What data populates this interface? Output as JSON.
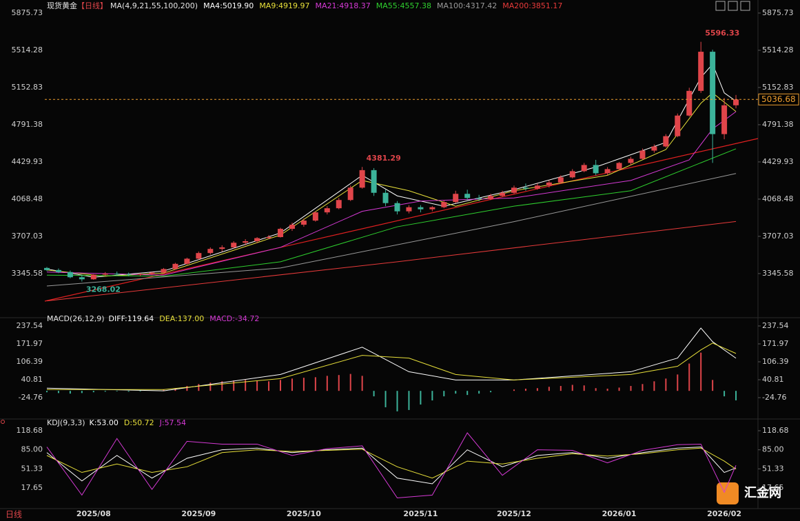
{
  "chart_data": [
    {
      "type": "candlestick",
      "title": "现货黄金",
      "period": "【日线】",
      "ma_label": "MA(4,9,21,55,100,200)",
      "up_color": "#e0454a",
      "down_color": "#3cb39a",
      "ylim": [
        2937,
        5969
      ],
      "yticks": [
        5875.73,
        5514.28,
        5152.83,
        4791.38,
        4429.93,
        4068.48,
        3707.03,
        3345.58
      ],
      "candles": [
        [
          3400,
          3410,
          3370,
          3380
        ],
        [
          3380,
          3395,
          3350,
          3360
        ],
        [
          3360,
          3375,
          3300,
          3310
        ],
        [
          3310,
          3330,
          3268.02,
          3290
        ],
        [
          3290,
          3340,
          3285,
          3335
        ],
        [
          3335,
          3360,
          3320,
          3345
        ],
        [
          3345,
          3365,
          3330,
          3340
        ],
        [
          3340,
          3355,
          3320,
          3335
        ],
        [
          3335,
          3350,
          3320,
          3340
        ],
        [
          3340,
          3360,
          3330,
          3355
        ],
        [
          3355,
          3400,
          3350,
          3390
        ],
        [
          3390,
          3450,
          3385,
          3440
        ],
        [
          3440,
          3500,
          3430,
          3490
        ],
        [
          3490,
          3560,
          3480,
          3545
        ],
        [
          3545,
          3600,
          3530,
          3585
        ],
        [
          3585,
          3620,
          3560,
          3600
        ],
        [
          3600,
          3660,
          3590,
          3645
        ],
        [
          3645,
          3680,
          3620,
          3660
        ],
        [
          3660,
          3700,
          3640,
          3690
        ],
        [
          3690,
          3720,
          3680,
          3700
        ],
        [
          3700,
          3790,
          3695,
          3780
        ],
        [
          3780,
          3840,
          3760,
          3820
        ],
        [
          3820,
          3880,
          3800,
          3860
        ],
        [
          3860,
          3950,
          3850,
          3940
        ],
        [
          3940,
          4000,
          3920,
          3980
        ],
        [
          3980,
          4080,
          3970,
          4060
        ],
        [
          4060,
          4200,
          4050,
          4180
        ],
        [
          4180,
          4381.29,
          4170,
          4350
        ],
        [
          4350,
          4370,
          4100,
          4130
        ],
        [
          4130,
          4160,
          4000,
          4030
        ],
        [
          4030,
          4050,
          3920,
          3950
        ],
        [
          3950,
          4010,
          3930,
          3990
        ],
        [
          3990,
          4010,
          3940,
          3970
        ],
        [
          3970,
          4000,
          3950,
          3990
        ],
        [
          3990,
          4060,
          3980,
          4040
        ],
        [
          4040,
          4150,
          4030,
          4120
        ],
        [
          4120,
          4160,
          4060,
          4080
        ],
        [
          4080,
          4110,
          4050,
          4070
        ],
        [
          4070,
          4120,
          4060,
          4100
        ],
        [
          4100,
          4150,
          4090,
          4130
        ],
        [
          4130,
          4200,
          4120,
          4180
        ],
        [
          4180,
          4220,
          4150,
          4170
        ],
        [
          4170,
          4220,
          4160,
          4200
        ],
        [
          4200,
          4250,
          4180,
          4230
        ],
        [
          4230,
          4300,
          4220,
          4280
        ],
        [
          4280,
          4360,
          4270,
          4340
        ],
        [
          4340,
          4420,
          4330,
          4400
        ],
        [
          4400,
          4450,
          4300,
          4320
        ],
        [
          4320,
          4380,
          4300,
          4360
        ],
        [
          4360,
          4430,
          4350,
          4420
        ],
        [
          4420,
          4480,
          4400,
          4460
        ],
        [
          4460,
          4560,
          4450,
          4540
        ],
        [
          4540,
          4600,
          4520,
          4580
        ],
        [
          4580,
          4700,
          4570,
          4680
        ],
        [
          4680,
          4900,
          4670,
          4880
        ],
        [
          4880,
          5150,
          4870,
          5120
        ],
        [
          5120,
          5596.33,
          5100,
          5500
        ],
        [
          5500,
          5520,
          4420,
          4700
        ],
        [
          4700,
          5050,
          4650,
          4980
        ],
        [
          4980,
          5080,
          4950,
          5036.68
        ]
      ],
      "series": [
        {
          "name": "MA4:",
          "color": "#ffffff",
          "value_label": "5019.90",
          "x": [
            0,
            4,
            10,
            20,
            27,
            30,
            34,
            40,
            47,
            53,
            56,
            57,
            58,
            59
          ],
          "values": [
            3390,
            3310,
            3370,
            3740,
            4300,
            4100,
            4000,
            4160,
            4380,
            4620,
            5250,
            5380,
            5100,
            5019.9
          ]
        },
        {
          "name": "MA9:",
          "color": "#e8e03a",
          "x": [
            0,
            5,
            10,
            20,
            27,
            31,
            35,
            40,
            48,
            53,
            56,
            57,
            59
          ],
          "values": [
            3380,
            3320,
            3350,
            3720,
            4250,
            4150,
            4000,
            4150,
            4300,
            4550,
            5000,
            5100,
            4919.97
          ]
        },
        {
          "name": "MA21:",
          "color": "#d63ad6",
          "x": [
            0,
            10,
            20,
            27,
            32,
            40,
            50,
            55,
            57,
            59
          ],
          "values": [
            3360,
            3330,
            3600,
            3950,
            4050,
            4080,
            4250,
            4450,
            4750,
            4918.37
          ]
        },
        {
          "name": "MA55:",
          "color": "#2fd12f",
          "x": [
            0,
            10,
            20,
            30,
            40,
            50,
            59
          ],
          "values": [
            3330,
            3320,
            3460,
            3800,
            4000,
            4150,
            4557.38
          ]
        },
        {
          "name": "MA100:",
          "color": "#9a9a9a",
          "x": [
            0,
            20,
            40,
            59
          ],
          "values": [
            3225,
            3400,
            3850,
            4317.42
          ]
        },
        {
          "name": "MA200:",
          "color": "#e83a3a",
          "x": [
            0,
            30,
            59
          ],
          "values": [
            3080,
            3460,
            3851.17
          ]
        }
      ],
      "x_labels": [
        {
          "index": 4,
          "label": "2025/08"
        },
        {
          "index": 13,
          "label": "2025/09"
        },
        {
          "index": 22,
          "label": "2025/10"
        },
        {
          "index": 32,
          "label": "2025/11"
        },
        {
          "index": 40,
          "label": "2025/12"
        },
        {
          "index": 49,
          "label": "2026/01"
        },
        {
          "index": 58,
          "label": "2026/02"
        }
      ]
    },
    {
      "type": "macd",
      "title": "MACD(26,12,9)",
      "ylim": [
        -95.4,
        265.3
      ],
      "yticks": [
        237.54,
        171.97,
        106.39,
        40.81,
        -24.76
      ],
      "histogram": {
        "name": "MACD:",
        "color": "#d63ad6",
        "up_color": "#e0454a",
        "down_color": "#3cb39a",
        "values": [
          -5,
          -8,
          -10,
          -8,
          -5,
          -3,
          -2,
          -3,
          -2,
          0,
          5,
          10,
          18,
          25,
          30,
          35,
          38,
          40,
          38,
          35,
          40,
          45,
          48,
          50,
          55,
          58,
          62,
          55,
          -20,
          -60,
          -75,
          -70,
          -50,
          -35,
          -20,
          -10,
          -15,
          -10,
          -5,
          0,
          5,
          8,
          10,
          15,
          18,
          22,
          20,
          10,
          8,
          12,
          18,
          25,
          35,
          45,
          60,
          100,
          140,
          40,
          -20,
          -34.72
        ]
      },
      "series": [
        {
          "name": "DIFF:",
          "color": "#ffffff",
          "x": [
            0,
            10,
            20,
            27,
            31,
            35,
            40,
            50,
            54,
            56,
            57,
            59
          ],
          "values": [
            10,
            0,
            60,
            160,
            70,
            40,
            40,
            70,
            120,
            230,
            180,
            119.64
          ]
        },
        {
          "name": "DEA:",
          "color": "#e8e03a",
          "value_label": "137.00",
          "x": [
            0,
            10,
            20,
            27,
            31,
            35,
            40,
            50,
            54,
            56,
            57,
            59
          ],
          "values": [
            5,
            5,
            45,
            130,
            120,
            60,
            40,
            60,
            90,
            150,
            175,
            137
          ]
        }
      ]
    },
    {
      "type": "kdj",
      "title": "KDJ(9,3,3)",
      "ylim": [
        -21.3,
        134.5
      ],
      "yticks": [
        118.68,
        {
          "value": 85,
          "label": "85.00"
        },
        51.33,
        17.65
      ],
      "series": [
        {
          "name": "K:",
          "color": "#ffffff",
          "value_label": "53.00",
          "x": [
            0,
            3,
            6,
            9,
            12,
            15,
            18,
            21,
            24,
            27,
            30,
            33,
            36,
            39,
            42,
            45,
            48,
            51,
            54,
            56,
            58,
            59
          ],
          "values": [
            80,
            30,
            75,
            35,
            70,
            85,
            88,
            80,
            85,
            88,
            35,
            25,
            85,
            55,
            75,
            80,
            70,
            80,
            88,
            90,
            45,
            53
          ]
        },
        {
          "name": "D:",
          "color": "#e8e03a",
          "x": [
            0,
            3,
            6,
            9,
            12,
            15,
            18,
            21,
            24,
            27,
            30,
            33,
            36,
            39,
            42,
            45,
            48,
            51,
            54,
            56,
            58,
            59
          ],
          "values": [
            75,
            45,
            60,
            45,
            55,
            80,
            85,
            82,
            84,
            86,
            55,
            35,
            65,
            60,
            70,
            78,
            74,
            78,
            85,
            88,
            65,
            50.72
          ]
        },
        {
          "name": "J:",
          "color": "#d63ad6",
          "x": [
            0,
            3,
            6,
            9,
            12,
            15,
            18,
            21,
            24,
            27,
            30,
            33,
            36,
            39,
            42,
            45,
            48,
            51,
            54,
            56,
            58,
            59
          ],
          "values": [
            90,
            5,
            105,
            15,
            100,
            95,
            95,
            75,
            87,
            92,
            0,
            5,
            115,
            40,
            85,
            84,
            62,
            84,
            94,
            95,
            10,
            57.54
          ]
        }
      ]
    }
  ],
  "footer": {
    "period": "日线",
    "logo": "汇金网"
  }
}
